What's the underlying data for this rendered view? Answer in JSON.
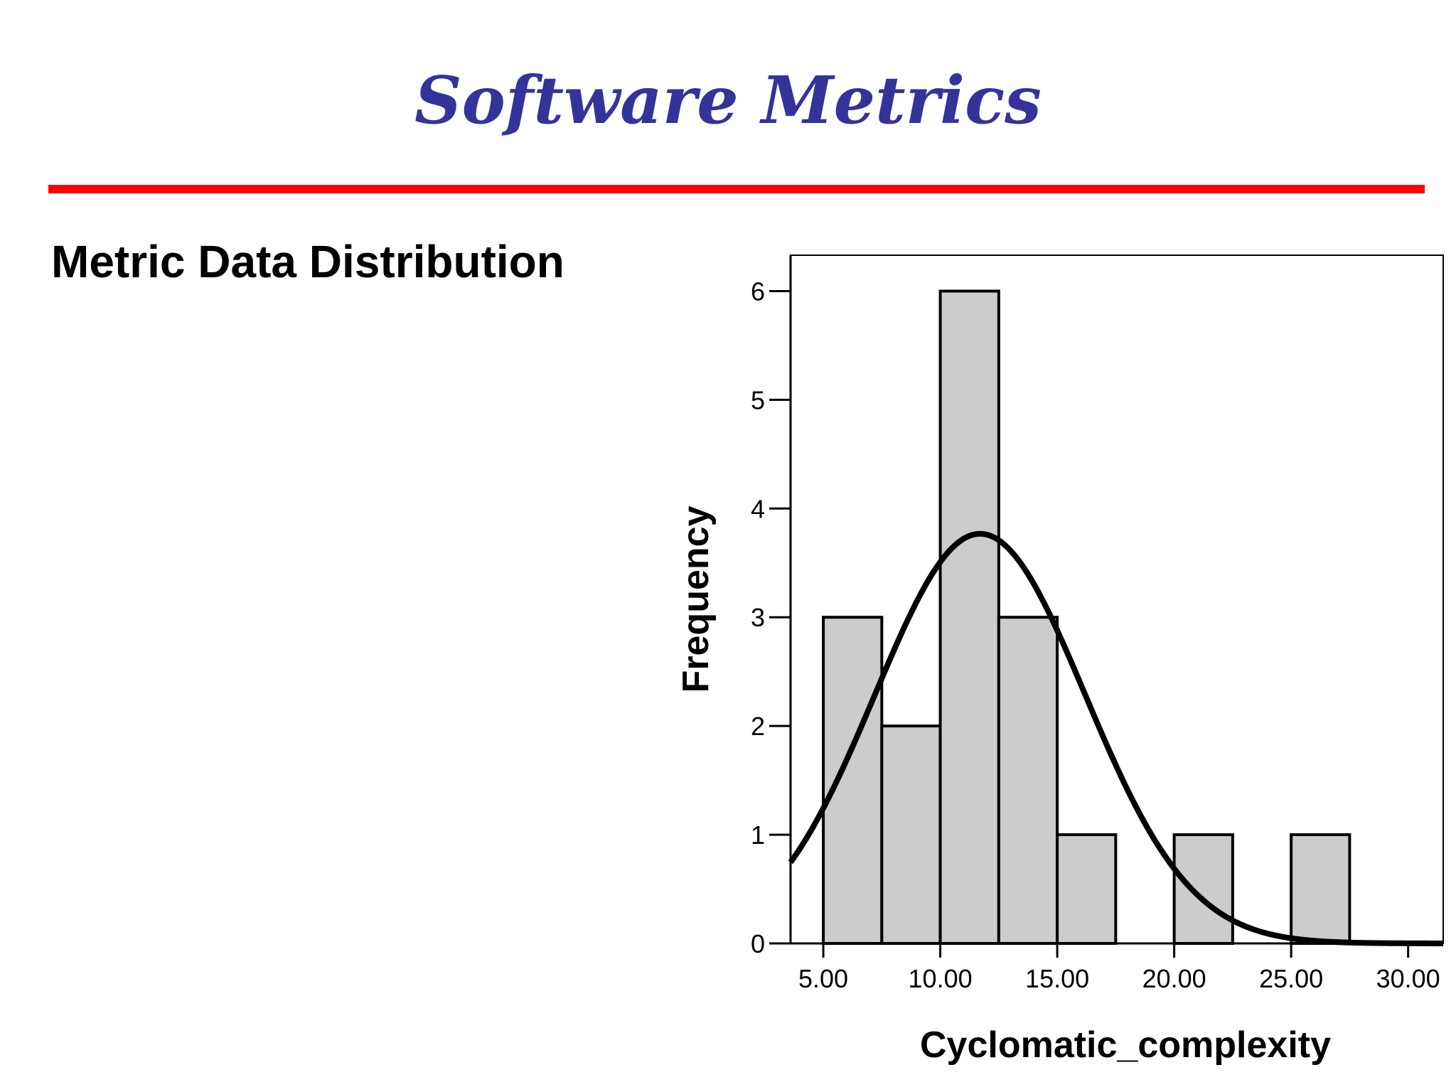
{
  "slide": {
    "title": "Software Metrics",
    "subheading": "Metric Data Distribution",
    "rule_color": "#ff0000",
    "title_color": "#33339a"
  },
  "chart_data": {
    "type": "bar",
    "subtype": "histogram",
    "xlabel": "Cyclomatic_complexity",
    "ylabel": "Frequency",
    "xlim": [
      3.6,
      31.5
    ],
    "ylim": [
      0,
      6.33
    ],
    "xticks": [
      5,
      10,
      15,
      20,
      25,
      30
    ],
    "xtick_labels": [
      "5.00",
      "10.00",
      "15.00",
      "20.00",
      "25.00",
      "30.00"
    ],
    "yticks": [
      0,
      1,
      2,
      3,
      4,
      5,
      6
    ],
    "ytick_labels": [
      "0",
      "1",
      "2",
      "3",
      "4",
      "5",
      "6"
    ],
    "bins": [
      {
        "start": 5.0,
        "end": 7.5,
        "count": 3
      },
      {
        "start": 7.5,
        "end": 10.0,
        "count": 2
      },
      {
        "start": 10.0,
        "end": 12.5,
        "count": 6
      },
      {
        "start": 12.5,
        "end": 15.0,
        "count": 3
      },
      {
        "start": 15.0,
        "end": 17.5,
        "count": 1
      },
      {
        "start": 17.5,
        "end": 20.0,
        "count": 0
      },
      {
        "start": 20.0,
        "end": 22.5,
        "count": 1
      },
      {
        "start": 22.5,
        "end": 25.0,
        "count": 0
      },
      {
        "start": 25.0,
        "end": 27.5,
        "count": 1
      }
    ],
    "normal_curve": {
      "mean": 11.7,
      "std": 4.5,
      "n": 17,
      "bin_width": 2.5
    },
    "bar_fill": "#cccccc",
    "bar_stroke": "#000000",
    "grid": false,
    "legend": "none"
  }
}
